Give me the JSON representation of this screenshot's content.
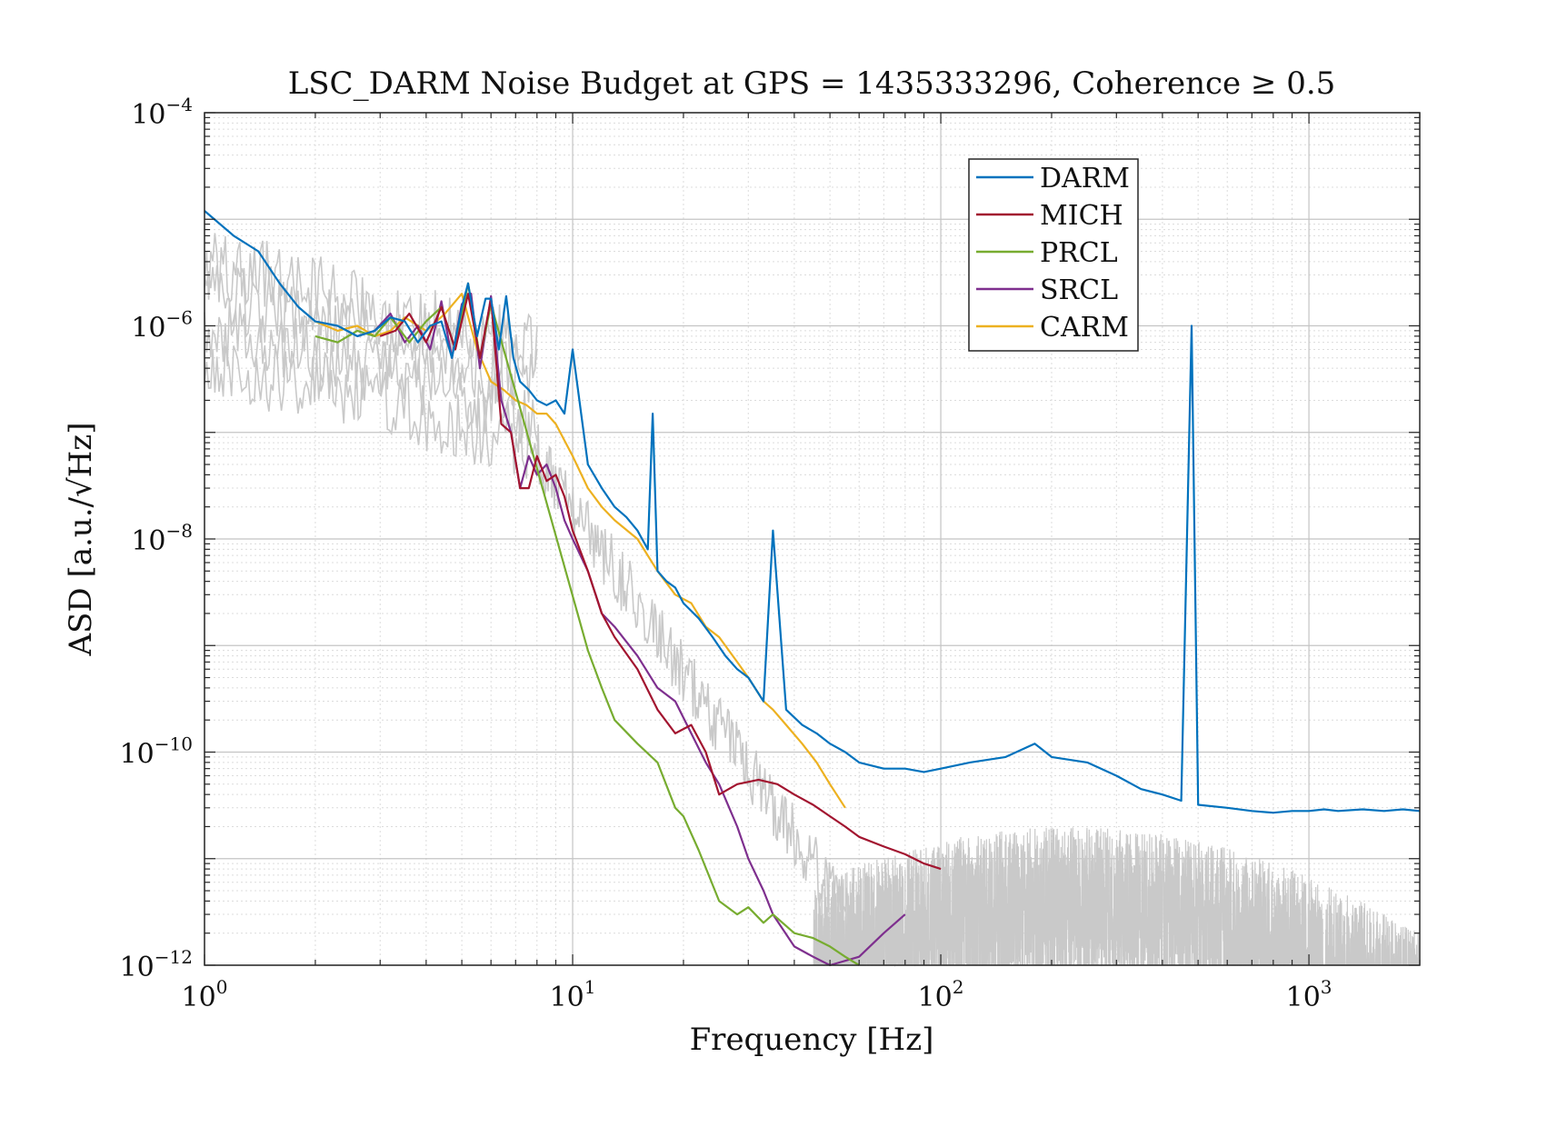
{
  "chart_data": {
    "type": "line",
    "title": "LSC_DARM Noise Budget at GPS = 1435333296, Coherence ≥ 0.5",
    "xlabel": "Frequency [Hz]",
    "ylabel": "ASD [a.u./√Hz]",
    "xscale": "log",
    "yscale": "log",
    "xlim": [
      1,
      2000
    ],
    "ylim": [
      1e-12,
      0.0001
    ],
    "grid": true,
    "legend_position": "top-right",
    "x_ticks": [
      {
        "value": 1,
        "base": "10",
        "exp": "0"
      },
      {
        "value": 10,
        "base": "10",
        "exp": "1"
      },
      {
        "value": 100,
        "base": "10",
        "exp": "2"
      },
      {
        "value": 1000,
        "base": "10",
        "exp": "3"
      }
    ],
    "y_ticks": [
      {
        "value": 0.0001,
        "base": "10",
        "exp": "−4"
      },
      {
        "value": 1e-06,
        "base": "10",
        "exp": "−6"
      },
      {
        "value": 1e-08,
        "base": "10",
        "exp": "−8"
      },
      {
        "value": 1e-10,
        "base": "10",
        "exp": "−10"
      },
      {
        "value": 1e-12,
        "base": "10",
        "exp": "−12"
      }
    ],
    "series": [
      {
        "name": "DARM",
        "color": "#0072BD",
        "x": [
          1,
          1.2,
          1.4,
          1.6,
          1.8,
          2.0,
          2.3,
          2.6,
          2.9,
          3.2,
          3.5,
          3.8,
          4.1,
          4.4,
          4.7,
          5.0,
          5.2,
          5.5,
          5.8,
          6.0,
          6.3,
          6.6,
          6.9,
          7.2,
          7.6,
          8.0,
          8.5,
          9.0,
          9.5,
          10,
          11,
          12,
          13,
          14,
          15,
          16,
          16.5,
          17,
          18,
          19,
          20,
          22,
          24,
          26,
          28,
          30,
          33,
          35,
          38,
          42,
          46,
          50,
          55,
          60,
          70,
          80,
          90,
          100,
          120,
          150,
          180,
          200,
          250,
          300,
          350,
          400,
          450,
          480,
          500,
          600,
          700,
          800,
          900,
          1000,
          1100,
          1200,
          1400,
          1600,
          1800,
          2000
        ],
        "y": [
          1.2e-05,
          7e-06,
          5e-06,
          2.5e-06,
          1.5e-06,
          1.1e-06,
          1e-06,
          8e-07,
          9e-07,
          1.2e-06,
          1.1e-06,
          7e-07,
          1e-06,
          1.1e-06,
          5e-07,
          1.5e-06,
          2.5e-06,
          8e-07,
          1.8e-06,
          1.8e-06,
          6e-07,
          1.9e-06,
          5e-07,
          3e-07,
          2.5e-07,
          2e-07,
          1.8e-07,
          2e-07,
          1.5e-07,
          6e-07,
          5e-08,
          3e-08,
          2e-08,
          1.6e-08,
          1.2e-08,
          8e-09,
          1.5e-07,
          5e-09,
          4e-09,
          3.5e-09,
          2.5e-09,
          1.8e-09,
          1.2e-09,
          8e-10,
          6e-10,
          5e-10,
          3e-10,
          1.2e-08,
          2.5e-10,
          1.8e-10,
          1.5e-10,
          1.2e-10,
          1e-10,
          8e-11,
          7e-11,
          7e-11,
          6.5e-11,
          7e-11,
          8e-11,
          9e-11,
          1.2e-10,
          9e-11,
          8e-11,
          6e-11,
          4.5e-11,
          4e-11,
          3.5e-11,
          1e-06,
          3.2e-11,
          3e-11,
          2.8e-11,
          2.7e-11,
          2.8e-11,
          2.8e-11,
          2.9e-11,
          2.8e-11,
          2.9e-11,
          2.8e-11,
          2.9e-11,
          2.8e-11
        ]
      },
      {
        "name": "MICH",
        "color": "#A2142F",
        "x": [
          3.0,
          3.3,
          3.6,
          4.0,
          4.4,
          4.8,
          5.2,
          5.6,
          6.0,
          6.4,
          6.8,
          7.2,
          7.6,
          8.0,
          8.5,
          9.0,
          9.5,
          10,
          11,
          12,
          13,
          15,
          17,
          19,
          21,
          23,
          25,
          28,
          32,
          36,
          40,
          45,
          50,
          55,
          60,
          70,
          80,
          90,
          100
        ],
        "y": [
          8e-07,
          9e-07,
          1.3e-06,
          7e-07,
          1.5e-06,
          6e-07,
          2e-06,
          5e-07,
          1.8e-06,
          1.2e-07,
          1e-07,
          3e-08,
          3e-08,
          6e-08,
          3.5e-08,
          4e-08,
          2.5e-08,
          1.2e-08,
          5e-09,
          2e-09,
          1.2e-09,
          6e-10,
          2.5e-10,
          1.5e-10,
          1.8e-10,
          1e-10,
          4e-11,
          5e-11,
          5.5e-11,
          5e-11,
          4e-11,
          3.2e-11,
          2.5e-11,
          2e-11,
          1.6e-11,
          1.3e-11,
          1.1e-11,
          9e-12,
          8e-12
        ]
      },
      {
        "name": "PRCL",
        "color": "#77AC30",
        "x": [
          2.0,
          2.3,
          2.6,
          2.9,
          3.2,
          3.6,
          4.0,
          4.4,
          4.8,
          5.2,
          5.6,
          6.0,
          11,
          12,
          13,
          15,
          17,
          19,
          20,
          22,
          25,
          28,
          30,
          33,
          35,
          40,
          45,
          50,
          55,
          60
        ],
        "y": [
          8e-07,
          7e-07,
          9e-07,
          8e-07,
          1.2e-06,
          7e-07,
          1.1e-06,
          1.5e-06,
          6e-07,
          2.5e-06,
          5e-07,
          1.6e-06,
          9e-10,
          4e-10,
          2e-10,
          1.2e-10,
          8e-11,
          3e-11,
          2.5e-11,
          1.2e-11,
          4e-12,
          3e-12,
          3.5e-12,
          2.5e-12,
          3e-12,
          2e-12,
          1.8e-12,
          1.5e-12,
          1.2e-12,
          1e-12
        ]
      },
      {
        "name": "SRCL",
        "color": "#7E2F8E",
        "x": [
          2.6,
          2.9,
          3.2,
          3.5,
          3.8,
          4.1,
          4.4,
          4.7,
          5.0,
          5.3,
          5.6,
          6.0,
          6.4,
          6.8,
          7.2,
          7.6,
          8.0,
          8.5,
          9.0,
          9.5,
          10,
          11,
          12,
          13,
          15,
          17,
          19,
          21,
          23,
          25,
          28,
          30,
          33,
          35,
          40,
          45,
          50,
          60,
          70,
          80
        ],
        "y": [
          8e-07,
          9e-07,
          1.3e-06,
          7e-07,
          1e-06,
          6e-07,
          1.7e-06,
          5e-07,
          1.6e-06,
          2e-06,
          4e-07,
          1.9e-06,
          2e-07,
          1e-07,
          3e-08,
          6e-08,
          4e-08,
          5e-08,
          3e-08,
          1.5e-08,
          1e-08,
          5e-09,
          2e-09,
          1.5e-09,
          8e-10,
          4e-10,
          3e-10,
          1.5e-10,
          8e-11,
          5e-11,
          2e-11,
          1e-11,
          5e-12,
          3e-12,
          1.5e-12,
          1.2e-12,
          1e-12,
          1.2e-12,
          2e-12,
          3e-12
        ]
      },
      {
        "name": "CARM",
        "color": "#EDB120",
        "x": [
          2.0,
          2.3,
          2.6,
          2.9,
          3.2,
          3.5,
          4.0,
          4.5,
          5.0,
          5.5,
          6.0,
          6.5,
          7.0,
          7.5,
          8.0,
          8.5,
          9.0,
          10,
          11,
          12,
          13,
          15,
          17,
          19,
          21,
          23,
          25,
          28,
          30,
          33,
          35,
          38,
          42,
          46,
          50,
          55
        ],
        "y": [
          1.1e-06,
          9e-07,
          1e-06,
          8e-07,
          9e-07,
          1.2e-06,
          9e-07,
          1.3e-06,
          2e-06,
          6e-07,
          3e-07,
          2.5e-07,
          2e-07,
          1.8e-07,
          1.5e-07,
          1.5e-07,
          1.2e-07,
          6e-08,
          3e-08,
          2e-08,
          1.5e-08,
          1e-08,
          5e-09,
          3e-09,
          2.5e-09,
          1.5e-09,
          1.2e-09,
          7e-10,
          5e-10,
          3e-10,
          2.5e-10,
          1.8e-10,
          1.2e-10,
          8e-11,
          5e-11,
          3e-11
        ]
      }
    ]
  }
}
